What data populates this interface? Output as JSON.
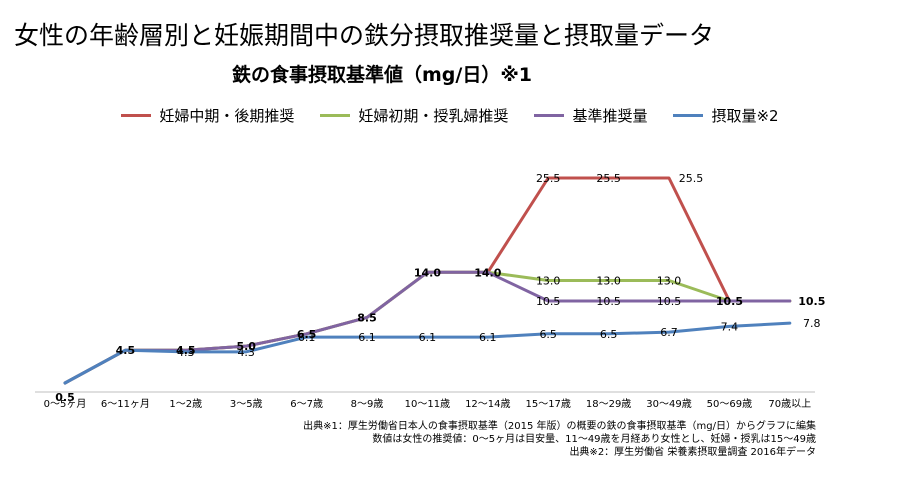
{
  "title": "女性の年齢層別と妊娠期間中の鉄分摂取推奨量と摂取量データ",
  "subtitle": "鉄の食事摂取基準値（mg/日）※1",
  "notes": [
    "出典※1：厚生労働省日本人の食事摂取基準（2015 年版）の概要の鉄の食事摂取基準（mg/日）からグラフに編集",
    "数値は女性の推奨値：0〜5ヶ月は目安量、11〜49歳を月経あり女性とし、妊婦・授乳は15〜49歳",
    "出典※2：厚生労働省 栄養素摂取量調査 2016年データ"
  ],
  "chart_data": {
    "type": "line",
    "title": "鉄の食事摂取基準値（mg/日）※1",
    "xlabel": "",
    "ylabel": "",
    "ylim": [
      0,
      28
    ],
    "grid": false,
    "legend_position": "top",
    "categories": [
      "0〜5ヶ月",
      "6〜11ヶ月",
      "1〜2歳",
      "3〜5歳",
      "6〜7歳",
      "8〜9歳",
      "10〜11歳",
      "12〜14歳",
      "15〜17歳",
      "18〜29歳",
      "30〜49歳",
      "50〜69歳",
      "70歳以上"
    ],
    "series": [
      {
        "name": "妊婦中期・後期推奨",
        "color": "#c0504d",
        "values": [
          0.5,
          4.5,
          4.5,
          5.0,
          6.5,
          8.5,
          14.0,
          14.0,
          25.5,
          25.5,
          25.5,
          10.5,
          10.5
        ]
      },
      {
        "name": "妊婦初期・授乳婦推奨",
        "color": "#9bbb59",
        "values": [
          0.5,
          4.5,
          4.5,
          5.0,
          6.5,
          8.5,
          14.0,
          14.0,
          13.0,
          13.0,
          13.0,
          10.5,
          10.5
        ]
      },
      {
        "name": "基準推奨量",
        "color": "#8064a2",
        "values": [
          0.5,
          4.5,
          4.5,
          5.0,
          6.5,
          8.5,
          14.0,
          14.0,
          10.5,
          10.5,
          10.5,
          10.5,
          10.5
        ]
      },
      {
        "name": "摂取量※2",
        "color": "#4f81bd",
        "values": [
          0.5,
          4.5,
          4.3,
          4.3,
          6.1,
          6.1,
          6.1,
          6.1,
          6.5,
          6.5,
          6.7,
          7.4,
          7.8
        ]
      }
    ],
    "data_labels": [
      {
        "category_index": 0,
        "text": "0.5",
        "value": 0.5,
        "bold": true
      },
      {
        "category_index": 1,
        "text": "4.5",
        "value": 4.5,
        "bold": true
      },
      {
        "category_index": 2,
        "text": "4.5",
        "value": 4.5,
        "bold": true
      },
      {
        "category_index": 2,
        "text": "4.3",
        "value": 4.3,
        "bold": false
      },
      {
        "category_index": 3,
        "text": "5.0",
        "value": 5.0,
        "bold": true
      },
      {
        "category_index": 3,
        "text": "4.3",
        "value": 4.3,
        "bold": false
      },
      {
        "category_index": 4,
        "text": "6.5",
        "value": 6.5,
        "bold": true
      },
      {
        "category_index": 4,
        "text": "6.1",
        "value": 6.1,
        "bold": false
      },
      {
        "category_index": 5,
        "text": "8.5",
        "value": 8.5,
        "bold": true
      },
      {
        "category_index": 5,
        "text": "6.1",
        "value": 6.1,
        "bold": false
      },
      {
        "category_index": 6,
        "text": "14.0",
        "value": 14.0,
        "bold": true
      },
      {
        "category_index": 6,
        "text": "6.1",
        "value": 6.1,
        "bold": false
      },
      {
        "category_index": 7,
        "text": "14.0",
        "value": 14.0,
        "bold": true
      },
      {
        "category_index": 7,
        "text": "6.1",
        "value": 6.1,
        "bold": false
      },
      {
        "category_index": 8,
        "text": "25.5",
        "value": 25.5,
        "bold": false
      },
      {
        "category_index": 8,
        "text": "13.0",
        "value": 13.0,
        "bold": false
      },
      {
        "category_index": 8,
        "text": "10.5",
        "value": 10.5,
        "bold": false
      },
      {
        "category_index": 8,
        "text": "6.5",
        "value": 6.5,
        "bold": false
      },
      {
        "category_index": 9,
        "text": "25.5",
        "value": 25.5,
        "bold": false
      },
      {
        "category_index": 9,
        "text": "13.0",
        "value": 13.0,
        "bold": false
      },
      {
        "category_index": 9,
        "text": "10.5",
        "value": 10.5,
        "bold": false
      },
      {
        "category_index": 9,
        "text": "6.5",
        "value": 6.5,
        "bold": false
      },
      {
        "category_index": 10,
        "text": "25.5",
        "value": 25.5,
        "bold": false
      },
      {
        "category_index": 10,
        "text": "13.0",
        "value": 13.0,
        "bold": false
      },
      {
        "category_index": 10,
        "text": "10.5",
        "value": 10.5,
        "bold": false
      },
      {
        "category_index": 10,
        "text": "6.7",
        "value": 6.7,
        "bold": false
      },
      {
        "category_index": 11,
        "text": "10.5",
        "value": 10.5,
        "bold": true
      },
      {
        "category_index": 11,
        "text": "7.4",
        "value": 7.4,
        "bold": false
      },
      {
        "category_index": 12,
        "text": "10.5",
        "value": 10.5,
        "bold": true
      },
      {
        "category_index": 12,
        "text": "7.8",
        "value": 7.8,
        "bold": false
      }
    ]
  }
}
